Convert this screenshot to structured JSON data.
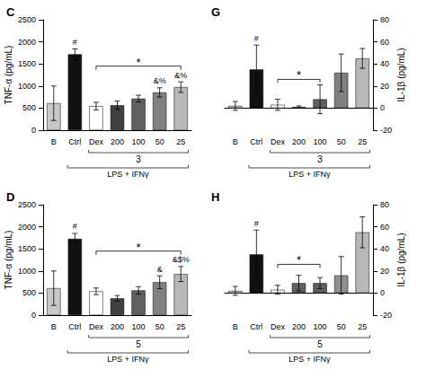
{
  "chart_data": [
    {
      "type": "bar",
      "title": "C",
      "ylabel": "TNF-α (pg/mL)",
      "categories": [
        "B",
        "Ctrl",
        "Dex",
        "200",
        "100",
        "50",
        "25"
      ],
      "values": [
        610,
        1720,
        545,
        565,
        715,
        855,
        975
      ],
      "errors": [
        390,
        120,
        85,
        95,
        75,
        105,
        120
      ],
      "colors": [
        "#c8c8c8",
        "#111111",
        "#ffffff",
        "#404040",
        "#606060",
        "#808080",
        "#b8b8b8"
      ],
      "ylim": [
        0,
        2500
      ],
      "yticks": [
        0,
        500,
        1000,
        1500,
        2000,
        2500
      ],
      "grid": false,
      "annotations": [
        {
          "text": "#",
          "category": "Ctrl"
        },
        {
          "text": "&%",
          "category": "50"
        },
        {
          "text": "&%",
          "category": "25"
        },
        {
          "text": "*",
          "from": "Dex",
          "to": "25",
          "y": 1450
        },
        {
          "text": "3",
          "from": "Dex",
          "to": "25"
        },
        {
          "text": "LPS + IFNγ",
          "from": "Ctrl",
          "to": "25"
        }
      ]
    },
    {
      "type": "bar",
      "title": "G",
      "ylabel": "IL-1β (pg/mL)",
      "categories": [
        "B",
        "Ctrl",
        "Dex",
        "200",
        "100",
        "50",
        "25"
      ],
      "values": [
        2,
        35,
        3,
        1,
        8,
        32,
        45
      ],
      "errors": [
        4,
        22,
        5,
        1,
        13,
        17,
        9
      ],
      "colors": [
        "#c8c8c8",
        "#111111",
        "#ffffff",
        "#404040",
        "#606060",
        "#808080",
        "#b8b8b8"
      ],
      "ylim": [
        -20,
        80
      ],
      "yticks": [
        -20,
        0,
        20,
        40,
        60,
        80
      ],
      "grid": false,
      "annotations": [
        {
          "text": "#",
          "category": "Ctrl"
        },
        {
          "text": "*",
          "from": "Dex",
          "to": "100",
          "y": 26
        },
        {
          "text": "3",
          "from": "Dex",
          "to": "25"
        },
        {
          "text": "LPS + IFNγ",
          "from": "Ctrl",
          "to": "25"
        }
      ]
    },
    {
      "type": "bar",
      "title": "D",
      "ylabel": "TNF-α (pg/mL)",
      "categories": [
        "B",
        "Ctrl",
        "Dex",
        "200",
        "100",
        "50",
        "25"
      ],
      "values": [
        610,
        1730,
        540,
        380,
        560,
        745,
        930
      ],
      "errors": [
        390,
        120,
        75,
        65,
        85,
        145,
        170
      ],
      "colors": [
        "#c8c8c8",
        "#111111",
        "#ffffff",
        "#404040",
        "#606060",
        "#808080",
        "#b8b8b8"
      ],
      "ylim": [
        0,
        2500
      ],
      "yticks": [
        0,
        500,
        1000,
        1500,
        2000,
        2500
      ],
      "grid": false,
      "annotations": [
        {
          "text": "#",
          "category": "Ctrl"
        },
        {
          "text": "&",
          "category": "50"
        },
        {
          "text": "&$%",
          "category": "25"
        },
        {
          "text": "*",
          "from": "Dex",
          "to": "25",
          "y": 1450
        },
        {
          "text": "5",
          "from": "Dex",
          "to": "25"
        },
        {
          "text": "LPS + IFNγ",
          "from": "Ctrl",
          "to": "25"
        }
      ]
    },
    {
      "type": "bar",
      "title": "H",
      "ylabel": "IL-1β (pg/mL)",
      "categories": [
        "B",
        "Ctrl",
        "Dex",
        "200",
        "100",
        "50",
        "25"
      ],
      "values": [
        2,
        35,
        3,
        9,
        9,
        16,
        55
      ],
      "errors": [
        4,
        22,
        4,
        7,
        5,
        17,
        14
      ],
      "colors": [
        "#c8c8c8",
        "#111111",
        "#ffffff",
        "#606060",
        "#606060",
        "#909090",
        "#b8b8b8"
      ],
      "ylim": [
        -20,
        80
      ],
      "yticks": [
        -20,
        0,
        20,
        40,
        60,
        80
      ],
      "grid": false,
      "annotations": [
        {
          "text": "#",
          "category": "Ctrl"
        },
        {
          "text": "*",
          "from": "Dex",
          "to": "100",
          "y": 26
        },
        {
          "text": "5",
          "from": "Dex",
          "to": "25"
        },
        {
          "text": "LPS + IFNγ",
          "from": "Ctrl",
          "to": "25"
        }
      ]
    }
  ]
}
